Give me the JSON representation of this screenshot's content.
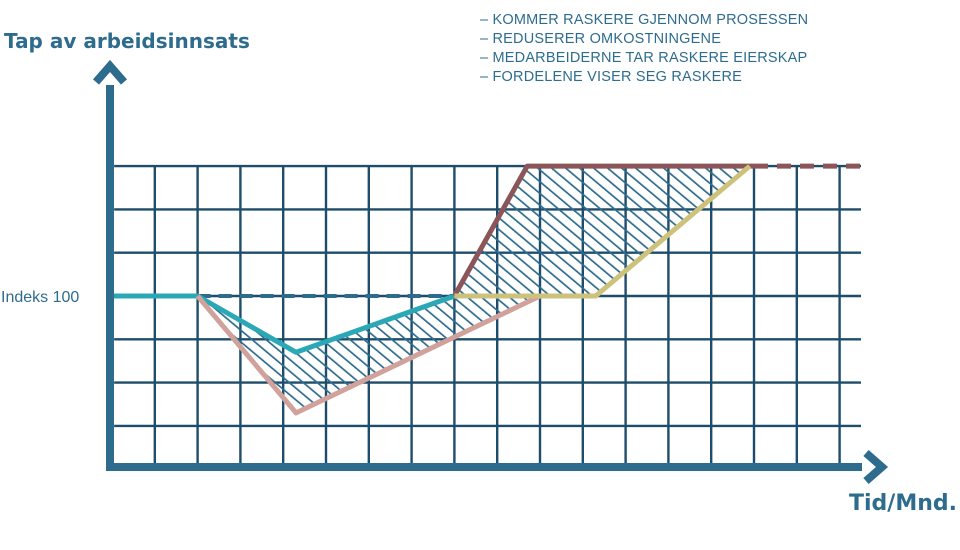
{
  "chart_data": {
    "type": "line",
    "ylabel": "Tap av arbeidsinnsats",
    "xlabel": "Tid/Mnd.",
    "ytick_label": "Indeks 100",
    "notes": [
      "– KOMMER RASKERE GJENNOM PROSESSEN",
      "– REDUSERER OMKOSTNINGENE",
      "– MEDARBEIDERNE TAR RASKERE EIERSKAP",
      "– FORDELENE VISER SEG RASKERE"
    ],
    "xlim": [
      0,
      17.5
    ],
    "ylim": [
      -4,
      3
    ],
    "grid": true,
    "grid_x": [
      1,
      2,
      3,
      4,
      5,
      6,
      7,
      8,
      9,
      10,
      11,
      12,
      13,
      14,
      15,
      16,
      17
    ],
    "grid_y": [
      -3,
      -2,
      -1,
      0,
      1,
      2,
      3
    ],
    "series": [
      {
        "key": "baseline",
        "color": "#2E6C8E",
        "dashed": true,
        "points": [
          [
            2,
            0
          ],
          [
            8,
            0
          ]
        ]
      },
      {
        "key": "teal",
        "color": "#2BA8B6",
        "points": [
          [
            0,
            0
          ],
          [
            2,
            0
          ],
          [
            4.3,
            -1.3
          ],
          [
            8,
            0
          ]
        ]
      },
      {
        "key": "pink",
        "color": "#D1A29B",
        "points": [
          [
            2,
            0
          ],
          [
            4.3,
            -2.7
          ],
          [
            10,
            0
          ]
        ]
      },
      {
        "key": "brown",
        "color": "#8B555A",
        "points": [
          [
            8,
            0
          ],
          [
            9.7,
            3
          ],
          [
            15,
            3
          ]
        ]
      },
      {
        "key": "brown-dashed",
        "color": "#8B555A",
        "dashed": true,
        "points": [
          [
            15,
            3
          ],
          [
            17.5,
            3
          ]
        ]
      },
      {
        "key": "olive",
        "color": "#CDC27B",
        "points": [
          [
            8,
            0
          ],
          [
            11.3,
            0
          ],
          [
            14.9,
            3
          ]
        ]
      }
    ],
    "colors": {
      "axis": "#2E6C8E",
      "grid": "#1E4D6B",
      "hatch": "#2E6C8E",
      "text": "#2E6C8E"
    }
  }
}
